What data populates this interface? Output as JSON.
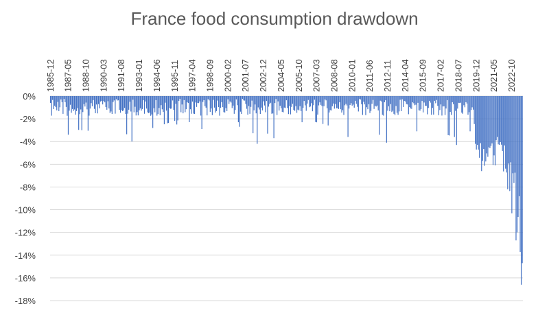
{
  "chart_data": {
    "type": "bar",
    "title": "France food consumption drawdown",
    "xlabel": "",
    "ylabel": "",
    "x_tick_labels": [
      "1985-12",
      "1987-05",
      "1988-10",
      "1990-03",
      "1991-08",
      "1993-01",
      "1994-06",
      "1995-11",
      "1997-04",
      "1998-09",
      "2000-02",
      "2001-07",
      "2002-12",
      "2004-05",
      "2005-10",
      "2007-03",
      "2008-08",
      "2010-01",
      "2011-06",
      "2012-11",
      "2014-04",
      "2015-09",
      "2017-02",
      "2018-07",
      "2019-12",
      "2021-05",
      "2022-10"
    ],
    "y_tick_labels": [
      "0%",
      "-2%",
      "-4%",
      "-6%",
      "-8%",
      "-10%",
      "-12%",
      "-14%",
      "-16%",
      "-18%"
    ],
    "ylim": [
      -18,
      0
    ],
    "y_ticks": [
      0,
      -2,
      -4,
      -6,
      -8,
      -10,
      -12,
      -14,
      -16,
      -18
    ],
    "grid": true,
    "series_color": "#4472c4",
    "x_start": "1985-12",
    "x_end": "2023-08",
    "key_points": [
      {
        "x": "1987-05",
        "y": -3.4
      },
      {
        "x": "1992-06",
        "y": -4.0
      },
      {
        "x": "1996-01",
        "y": -2.5
      },
      {
        "x": "1998-01",
        "y": -2.9
      },
      {
        "x": "2001-01",
        "y": -2.7
      },
      {
        "x": "2002-06",
        "y": -4.2
      },
      {
        "x": "2003-10",
        "y": -3.7
      },
      {
        "x": "2006-01",
        "y": -2.3
      },
      {
        "x": "2009-09",
        "y": -3.6
      },
      {
        "x": "2012-10",
        "y": -4.1
      },
      {
        "x": "2015-03",
        "y": -3.1
      },
      {
        "x": "2018-05",
        "y": -4.3
      },
      {
        "x": "2019-06",
        "y": -3.1
      },
      {
        "x": "2020-05",
        "y": -6.6
      },
      {
        "x": "2021-06",
        "y": -6.1
      },
      {
        "x": "2022-06",
        "y": -8.2
      },
      {
        "x": "2023-02",
        "y": -12.7
      },
      {
        "x": "2023-07",
        "y": -16.6
      }
    ]
  }
}
